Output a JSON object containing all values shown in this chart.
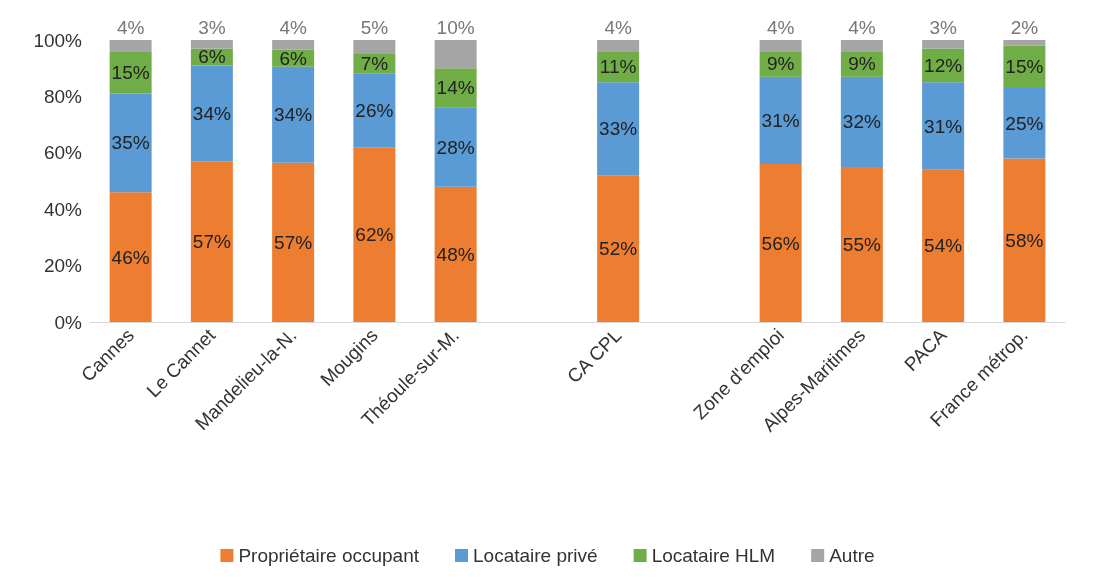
{
  "chart_data": {
    "type": "bar",
    "stacked": true,
    "categories": [
      "Cannes",
      "Le Cannet",
      "Mandelieu-la-N.",
      "Mougins",
      "Théoule-sur-M.",
      null,
      "CA CPL",
      null,
      "Zone d'emploi",
      "Alpes-Maritimes",
      "PACA",
      "France métrop."
    ],
    "series": [
      {
        "name": "Propriétaire occupant",
        "color": "#ed7d31",
        "values": [
          46,
          57,
          56.5,
          62,
          48,
          null,
          52,
          null,
          56,
          55,
          54,
          58
        ],
        "value_labels": [
          "46%",
          "57%",
          "57%",
          "62%",
          "48%",
          null,
          "52%",
          null,
          "56%",
          "55%",
          "54%",
          "58%"
        ]
      },
      {
        "name": "Locataire privé",
        "color": "#5b9bd5",
        "values": [
          35,
          34,
          34,
          26,
          28,
          null,
          33,
          null,
          31,
          32,
          31,
          25
        ],
        "value_labels": [
          "35%",
          "34%",
          "34%",
          "26%",
          "28%",
          null,
          "33%",
          null,
          "31%",
          "32%",
          "31%",
          "25%"
        ]
      },
      {
        "name": "Locataire HLM",
        "color": "#70ad47",
        "values": [
          15,
          6,
          6,
          7,
          14,
          null,
          11,
          null,
          9,
          9,
          12,
          15
        ],
        "value_labels": [
          "15%",
          "6%",
          "6%",
          "7%",
          "14%",
          null,
          "11%",
          null,
          "9%",
          "9%",
          "12%",
          "15%"
        ]
      },
      {
        "name": "Autre",
        "color": "#a5a5a5",
        "values": [
          4,
          3,
          3.5,
          5,
          10,
          null,
          4,
          null,
          4,
          4,
          3,
          2
        ],
        "value_labels": [
          "4%",
          "3%",
          "4%",
          "5%",
          "10%",
          null,
          "4%",
          null,
          "4%",
          "4%",
          "3%",
          "2%"
        ]
      }
    ],
    "ylim": [
      0,
      100
    ],
    "yticks": [
      {
        "value": 0,
        "label": "0%"
      },
      {
        "value": 20,
        "label": "20%"
      },
      {
        "value": 40,
        "label": "40%"
      },
      {
        "value": 60,
        "label": "60%"
      },
      {
        "value": 80,
        "label": "80%"
      },
      {
        "value": 100,
        "label": "100%"
      }
    ],
    "grid": false,
    "legend": "bottom"
  }
}
